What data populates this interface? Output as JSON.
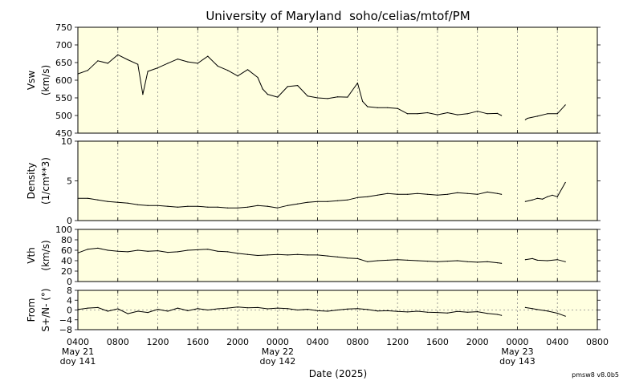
{
  "chart_data": {
    "type": "line",
    "title": "University of Maryland  soho/celias/mtof/PM",
    "xlabel": "Date (2025)",
    "footer": "pmsw8 v8.0b5",
    "x_range_hours": [
      4,
      56
    ],
    "x_ticks": [
      {
        "h": 4,
        "label": "0400",
        "sub1": "May 21",
        "sub2": "doy 141"
      },
      {
        "h": 8,
        "label": "0800"
      },
      {
        "h": 12,
        "label": "1200"
      },
      {
        "h": 16,
        "label": "1600"
      },
      {
        "h": 20,
        "label": "2000"
      },
      {
        "h": 24,
        "label": "0000",
        "sub1": "May 22",
        "sub2": "doy 142"
      },
      {
        "h": 28,
        "label": "0400"
      },
      {
        "h": 32,
        "label": "0800"
      },
      {
        "h": 36,
        "label": "1200"
      },
      {
        "h": 40,
        "label": "1600"
      },
      {
        "h": 44,
        "label": "2000"
      },
      {
        "h": 48,
        "label": "0000",
        "sub1": "May 23",
        "sub2": "doy 143"
      },
      {
        "h": 52,
        "label": "0400"
      },
      {
        "h": 56,
        "label": "0800"
      }
    ],
    "colors": {
      "panel_bg": "#ffffe0",
      "line": "#000000",
      "grid": "#888888"
    },
    "panels": [
      {
        "name": "Vsw",
        "ylabel1": "Vsw",
        "ylabel2": "(km/s)",
        "ylim": [
          450,
          750
        ],
        "yticks": [
          450,
          500,
          550,
          600,
          650,
          700,
          750
        ],
        "x": [
          4,
          5,
          6,
          7,
          8,
          9,
          10,
          10.5,
          11,
          12,
          13,
          14,
          15,
          16,
          17,
          18,
          19,
          20,
          21,
          22,
          22.5,
          23,
          24,
          25,
          26,
          27,
          28,
          29,
          30,
          31,
          32,
          32.5,
          33,
          34,
          35,
          36,
          37,
          38,
          39,
          40,
          41,
          42,
          43,
          44,
          45,
          46,
          46.4,
          null,
          48.8,
          49,
          50,
          51,
          52,
          52.8
        ],
        "y": [
          618,
          628,
          655,
          648,
          672,
          658,
          645,
          560,
          625,
          635,
          648,
          660,
          652,
          648,
          668,
          640,
          628,
          612,
          630,
          608,
          575,
          560,
          552,
          582,
          585,
          555,
          550,
          548,
          553,
          552,
          592,
          540,
          525,
          522,
          522,
          520,
          505,
          505,
          508,
          502,
          508,
          502,
          505,
          512,
          505,
          506,
          500,
          null,
          488,
          492,
          498,
          505,
          505,
          530
        ]
      },
      {
        "name": "Density",
        "ylabel1": "Density",
        "ylabel2": "(1/cm**3)",
        "ylim": [
          0,
          10
        ],
        "yticks": [
          0,
          5,
          10
        ],
        "x": [
          4,
          5,
          6,
          7,
          8,
          9,
          10,
          11,
          12,
          13,
          14,
          15,
          16,
          17,
          18,
          19,
          20,
          21,
          22,
          23,
          24,
          25,
          26,
          27,
          28,
          29,
          30,
          31,
          32,
          33,
          34,
          35,
          36,
          37,
          38,
          39,
          40,
          41,
          42,
          43,
          44,
          45,
          46,
          46.4,
          null,
          48.8,
          49.5,
          50,
          50.5,
          51,
          51.5,
          52,
          52.8
        ],
        "y": [
          2.8,
          2.8,
          2.6,
          2.4,
          2.3,
          2.2,
          2.0,
          1.9,
          1.9,
          1.8,
          1.7,
          1.8,
          1.8,
          1.7,
          1.7,
          1.6,
          1.6,
          1.7,
          1.9,
          1.8,
          1.6,
          1.9,
          2.1,
          2.3,
          2.4,
          2.4,
          2.5,
          2.6,
          2.9,
          3.0,
          3.2,
          3.4,
          3.3,
          3.3,
          3.4,
          3.3,
          3.2,
          3.3,
          3.5,
          3.4,
          3.3,
          3.6,
          3.4,
          3.3,
          null,
          2.4,
          2.6,
          2.8,
          2.7,
          3.0,
          3.2,
          3.0,
          4.8
        ]
      },
      {
        "name": "Vth",
        "ylabel1": "Vth",
        "ylabel2": "(km/s)",
        "ylim": [
          0,
          100
        ],
        "yticks": [
          0,
          20,
          40,
          60,
          80,
          100
        ],
        "x": [
          4,
          5,
          6,
          7,
          8,
          9,
          10,
          11,
          12,
          13,
          14,
          15,
          16,
          17,
          18,
          19,
          20,
          21,
          22,
          23,
          24,
          25,
          26,
          27,
          28,
          29,
          30,
          31,
          32,
          33,
          34,
          35,
          36,
          37,
          38,
          39,
          40,
          41,
          42,
          43,
          44,
          45,
          46,
          46.4,
          null,
          48.8,
          49.5,
          50,
          51,
          52,
          52.8
        ],
        "y": [
          55,
          62,
          64,
          60,
          58,
          57,
          60,
          58,
          59,
          56,
          57,
          60,
          61,
          62,
          58,
          57,
          54,
          52,
          50,
          51,
          52,
          51,
          52,
          51,
          51,
          49,
          47,
          45,
          44,
          38,
          40,
          41,
          42,
          41,
          40,
          39,
          38,
          39,
          40,
          38,
          37,
          38,
          36,
          35,
          null,
          42,
          44,
          41,
          40,
          42,
          38
        ]
      },
      {
        "name": "From",
        "ylabel1": "From",
        "ylabel2": "S+/N- (°)",
        "ylim": [
          -8,
          8
        ],
        "yticks": [
          -8,
          -4,
          0,
          4,
          8
        ],
        "ytick_labels": [
          "−8",
          "−4",
          "0",
          "4",
          "8"
        ],
        "zero_line": true,
        "x": [
          4,
          5,
          6,
          7,
          8,
          9,
          10,
          11,
          12,
          13,
          14,
          15,
          16,
          17,
          18,
          19,
          20,
          21,
          22,
          23,
          24,
          25,
          26,
          27,
          28,
          29,
          30,
          31,
          32,
          33,
          34,
          35,
          36,
          37,
          38,
          39,
          40,
          41,
          42,
          43,
          44,
          45,
          46,
          46.4,
          null,
          48.8,
          49.5,
          50,
          51,
          52,
          52.8
        ],
        "y": [
          0.2,
          0.8,
          1,
          -0.5,
          0.5,
          -1.5,
          -0.5,
          -1,
          0.3,
          -0.5,
          0.8,
          -0.3,
          0.6,
          0,
          0.5,
          0.8,
          1.2,
          0.9,
          1,
          0.5,
          0.8,
          0.6,
          0,
          0.3,
          -0.3,
          -0.5,
          0,
          0.4,
          0.6,
          0.2,
          -0.4,
          -0.3,
          -0.6,
          -0.8,
          -0.5,
          -0.9,
          -1,
          -1.2,
          -0.6,
          -0.9,
          -0.7,
          -1.4,
          -1.8,
          -2.2,
          null,
          1,
          0.6,
          0.2,
          -0.4,
          -1.3,
          -2.5
        ]
      }
    ]
  }
}
